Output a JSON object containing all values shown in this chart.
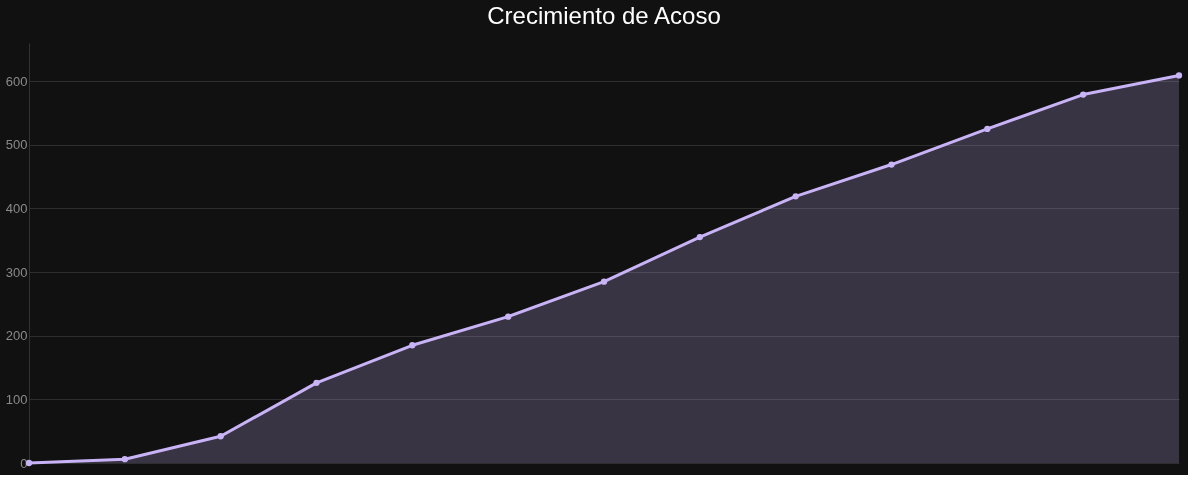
{
  "chart_data": {
    "type": "area",
    "title": "Crecimiento de Acoso",
    "categories": [
      null,
      null,
      null,
      null,
      null,
      null,
      null,
      null,
      null,
      null,
      null,
      null,
      null
    ],
    "series": [
      {
        "color": "#c9b3f7",
        "values": [
          0,
          6,
          42,
          126,
          185,
          230,
          285,
          355,
          419,
          469,
          525,
          579,
          609
        ]
      }
    ],
    "ylim": [
      0,
      660
    ],
    "yticks": [
      0,
      100,
      200,
      300,
      400,
      500,
      600
    ],
    "grid": "y",
    "marker": "circle",
    "line_style": "solid",
    "tick_labels": "y"
  }
}
